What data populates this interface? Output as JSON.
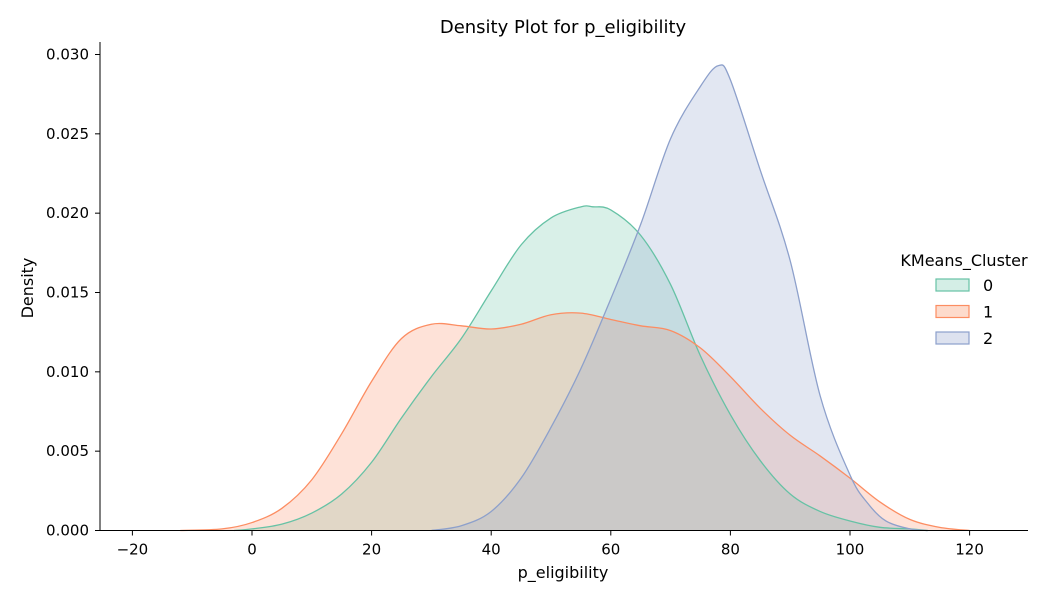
{
  "chart_data": {
    "type": "area",
    "title": "Density Plot for p_eligibility",
    "xlabel": "p_eligibility",
    "ylabel": "Density",
    "xlim": [
      -25,
      130
    ],
    "ylim": [
      0,
      0.031
    ],
    "x_ticks": [
      -20,
      0,
      20,
      40,
      60,
      80,
      100,
      120
    ],
    "x_tick_labels": [
      "−20",
      "0",
      "20",
      "40",
      "60",
      "80",
      "100",
      "120"
    ],
    "y_ticks": [
      0,
      0.005,
      0.01,
      0.015,
      0.02,
      0.025,
      0.03
    ],
    "y_tick_labels": [
      "0.000",
      "0.005",
      "0.010",
      "0.015",
      "0.020",
      "0.025",
      "0.030"
    ],
    "grid": false,
    "legend": {
      "title": "KMeans_Cluster",
      "placement": "right"
    },
    "series": [
      {
        "name": "0",
        "color": "#66c2a5",
        "fill": "#d4eee6",
        "points": [
          [
            -3,
            0
          ],
          [
            0,
            0.0001
          ],
          [
            5,
            0.0004
          ],
          [
            10,
            0.0011
          ],
          [
            15,
            0.0023
          ],
          [
            20,
            0.0043
          ],
          [
            25,
            0.0071
          ],
          [
            30,
            0.0097
          ],
          [
            35,
            0.0121
          ],
          [
            40,
            0.0151
          ],
          [
            45,
            0.018
          ],
          [
            50,
            0.0197
          ],
          [
            55,
            0.0204
          ],
          [
            57,
            0.0204
          ],
          [
            60,
            0.0202
          ],
          [
            65,
            0.0186
          ],
          [
            70,
            0.0155
          ],
          [
            75,
            0.011
          ],
          [
            80,
            0.0073
          ],
          [
            85,
            0.0044
          ],
          [
            90,
            0.0023
          ],
          [
            95,
            0.0012
          ],
          [
            100,
            0.0006
          ],
          [
            105,
            0.0002
          ],
          [
            110,
            0.0001
          ],
          [
            113,
            0
          ]
        ]
      },
      {
        "name": "1",
        "color": "#fc8d62",
        "fill": "#fddbcc",
        "points": [
          [
            -12,
            0
          ],
          [
            -5,
            0.0001
          ],
          [
            0,
            0.0005
          ],
          [
            5,
            0.0014
          ],
          [
            10,
            0.0032
          ],
          [
            15,
            0.0061
          ],
          [
            20,
            0.0094
          ],
          [
            25,
            0.0121
          ],
          [
            30,
            0.013
          ],
          [
            35,
            0.0129
          ],
          [
            40,
            0.0127
          ],
          [
            45,
            0.013
          ],
          [
            50,
            0.0136
          ],
          [
            55,
            0.0137
          ],
          [
            60,
            0.0133
          ],
          [
            65,
            0.0129
          ],
          [
            70,
            0.0126
          ],
          [
            75,
            0.0115
          ],
          [
            80,
            0.0097
          ],
          [
            85,
            0.0077
          ],
          [
            90,
            0.006
          ],
          [
            95,
            0.0047
          ],
          [
            100,
            0.0033
          ],
          [
            105,
            0.0018
          ],
          [
            110,
            0.0007
          ],
          [
            115,
            0.0002
          ],
          [
            120,
            0
          ]
        ]
      },
      {
        "name": "2",
        "color": "#8da0cb",
        "fill": "#dde2ef",
        "points": [
          [
            30,
            0
          ],
          [
            35,
            0.0003
          ],
          [
            40,
            0.0012
          ],
          [
            45,
            0.0033
          ],
          [
            50,
            0.0065
          ],
          [
            55,
            0.0102
          ],
          [
            60,
            0.0146
          ],
          [
            65,
            0.0193
          ],
          [
            70,
            0.0247
          ],
          [
            75,
            0.028
          ],
          [
            78,
            0.0293
          ],
          [
            80,
            0.0284
          ],
          [
            85,
            0.0227
          ],
          [
            90,
            0.017
          ],
          [
            95,
            0.0085
          ],
          [
            100,
            0.0035
          ],
          [
            103,
            0.0017
          ],
          [
            106,
            0.0006
          ],
          [
            110,
            0.0001
          ],
          [
            113,
            0
          ]
        ]
      }
    ]
  }
}
